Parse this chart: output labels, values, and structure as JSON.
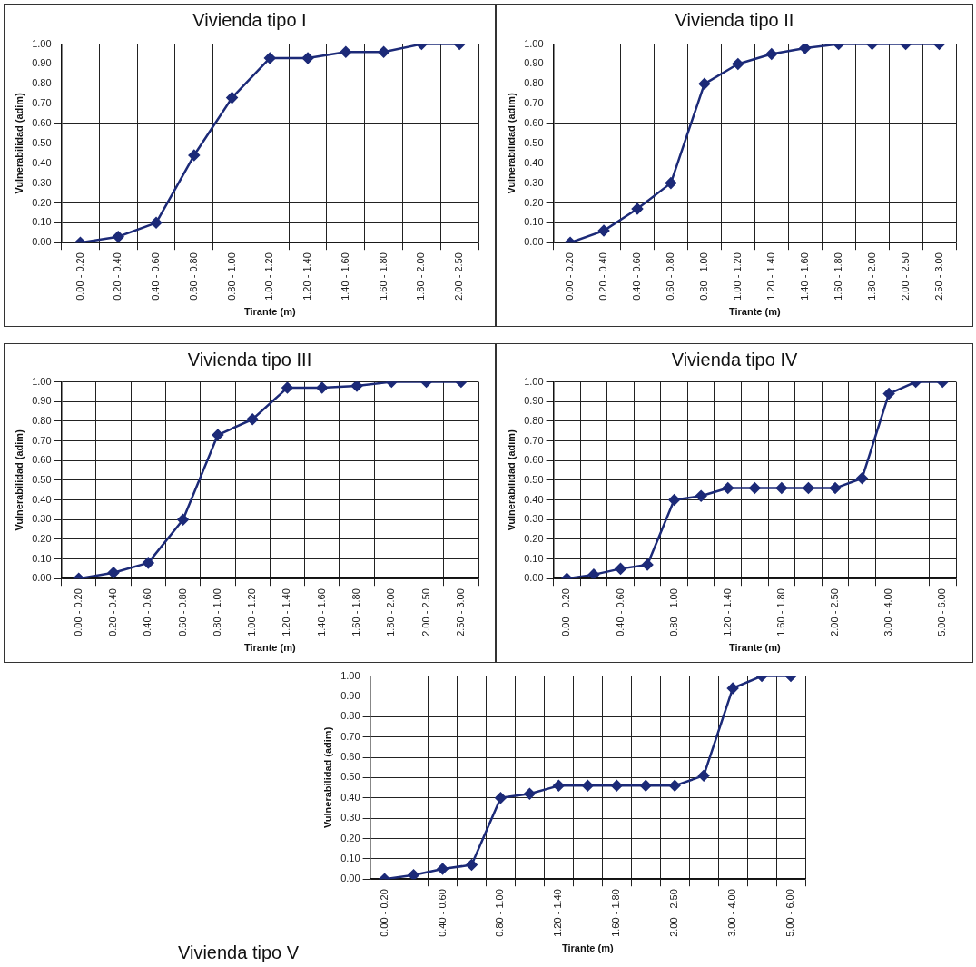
{
  "chart_data": [
    {
      "type": "line",
      "title": "Vivienda tipo I",
      "xlabel": "Tirante (m)",
      "ylabel": "Vulnerabilidad (adim)",
      "categories": [
        "0.00 - 0.20",
        "0.20 - 0.40",
        "0.40 - 0.60",
        "0.60 - 0.80",
        "0.80 - 1.00",
        "1.00 - 1.20",
        "1.20 - 1.40",
        "1.40 - 1.60",
        "1.60 - 1.80",
        "1.80 - 2.00",
        "2.00 - 2.50"
      ],
      "series": [
        {
          "color": "#1c2a78",
          "values": [
            0,
            0.03,
            0.1,
            0.44,
            0.73,
            0.93,
            0.93,
            0.96,
            0.96,
            1.0,
            1.0
          ]
        }
      ],
      "ylim": [
        0,
        1
      ],
      "yticks": [
        {
          "value": 0,
          "label": "0.00"
        },
        {
          "value": 0.1,
          "label": "0.10"
        },
        {
          "value": 0.2,
          "label": "0.20"
        },
        {
          "value": 0.3,
          "label": "0.30"
        },
        {
          "value": 0.4,
          "label": "0.40"
        },
        {
          "value": 0.5,
          "label": "0.50"
        },
        {
          "value": 0.6,
          "label": "0.60"
        },
        {
          "value": 0.7,
          "label": "0.70"
        },
        {
          "value": 0.8,
          "label": "0.80"
        },
        {
          "value": 0.9,
          "label": "0.90"
        },
        {
          "value": 1,
          "label": "1.00"
        }
      ],
      "grid": true,
      "legend": false,
      "marker": "diamond",
      "line_style": "solid"
    },
    {
      "type": "line",
      "title": "Vivienda tipo II",
      "xlabel": "Tirante (m)",
      "ylabel": "Vulnerabilidad (adim)",
      "categories": [
        "0.00 - 0.20",
        "0.20 - 0.40",
        "0.40 - 0.60",
        "0.60 - 0.80",
        "0.80 - 1.00",
        "1.00 - 1.20",
        "1.20 - 1.40",
        "1.40 - 1.60",
        "1.60 - 1.80",
        "1.80 - 2.00",
        "2.00 - 2.50",
        "2.50 - 3.00"
      ],
      "series": [
        {
          "color": "#1c2a78",
          "values": [
            0,
            0.06,
            0.17,
            0.3,
            0.8,
            0.9,
            0.95,
            0.98,
            1.0,
            1.0,
            1.0,
            1.0
          ]
        }
      ],
      "ylim": [
        0,
        1
      ],
      "yticks": [
        {
          "value": 0,
          "label": "0.00"
        },
        {
          "value": 0.1,
          "label": "0.10"
        },
        {
          "value": 0.2,
          "label": "0.20"
        },
        {
          "value": 0.3,
          "label": "0.30"
        },
        {
          "value": 0.4,
          "label": "0.40"
        },
        {
          "value": 0.5,
          "label": "0.50"
        },
        {
          "value": 0.6,
          "label": "0.60"
        },
        {
          "value": 0.7,
          "label": "0.70"
        },
        {
          "value": 0.8,
          "label": "0.80"
        },
        {
          "value": 0.9,
          "label": "0.90"
        },
        {
          "value": 1,
          "label": "1.00"
        }
      ],
      "grid": true,
      "legend": false,
      "marker": "diamond",
      "line_style": "solid"
    },
    {
      "type": "line",
      "title": "Vivienda tipo III",
      "xlabel": "Tirante (m)",
      "ylabel": "Vulnerabilidad (adim)",
      "categories": [
        "0.00 - 0.20",
        "0.20 - 0.40",
        "0.40 - 0.60",
        "0.60 - 0.80",
        "0.80 - 1.00",
        "1.00 - 1.20",
        "1.20 - 1.40",
        "1.40 - 1.60",
        "1.60 - 1.80",
        "1.80 - 2.00",
        "2.00 - 2.50",
        "2.50 - 3.00"
      ],
      "series": [
        {
          "color": "#1c2a78",
          "values": [
            0,
            0.03,
            0.08,
            0.3,
            0.73,
            0.81,
            0.97,
            0.97,
            0.98,
            1.0,
            1.0,
            1.0
          ]
        }
      ],
      "ylim": [
        0,
        1
      ],
      "yticks": [
        {
          "value": 0,
          "label": "0.00"
        },
        {
          "value": 0.1,
          "label": "0.10"
        },
        {
          "value": 0.2,
          "label": "0.20"
        },
        {
          "value": 0.3,
          "label": "0.30"
        },
        {
          "value": 0.4,
          "label": "0.40"
        },
        {
          "value": 0.5,
          "label": "0.50"
        },
        {
          "value": 0.6,
          "label": "0.60"
        },
        {
          "value": 0.7,
          "label": "0.70"
        },
        {
          "value": 0.8,
          "label": "0.80"
        },
        {
          "value": 0.9,
          "label": "0.90"
        },
        {
          "value": 1,
          "label": "1.00"
        }
      ],
      "grid": true,
      "legend": false,
      "marker": "diamond",
      "line_style": "solid"
    },
    {
      "type": "line",
      "title": "Vivienda tipo IV",
      "xlabel": "Tirante (m)",
      "ylabel": "Vulnerabilidad (adim)",
      "categories": [
        "0.00 - 0.20",
        null,
        "0.40 - 0.60",
        null,
        "0.80 - 1.00",
        null,
        "1.20 - 1.40",
        null,
        "1.60 - 1.80",
        null,
        "2.00 - 2.50",
        null,
        "3.00 - 4.00",
        null,
        "5.00 - 6.00"
      ],
      "series": [
        {
          "color": "#1c2a78",
          "values": [
            0,
            0.02,
            0.05,
            0.07,
            0.4,
            0.42,
            0.46,
            0.46,
            0.46,
            0.46,
            0.46,
            0.51,
            0.94,
            1.0,
            1.0
          ]
        }
      ],
      "ylim": [
        0,
        1
      ],
      "yticks": [
        {
          "value": 0,
          "label": "0.00"
        },
        {
          "value": 0.1,
          "label": "0.10"
        },
        {
          "value": 0.2,
          "label": "0.20"
        },
        {
          "value": 0.3,
          "label": "0.30"
        },
        {
          "value": 0.4,
          "label": "0.40"
        },
        {
          "value": 0.5,
          "label": "0.50"
        },
        {
          "value": 0.6,
          "label": "0.60"
        },
        {
          "value": 0.7,
          "label": "0.70"
        },
        {
          "value": 0.8,
          "label": "0.80"
        },
        {
          "value": 0.9,
          "label": "0.90"
        },
        {
          "value": 1,
          "label": "1.00"
        }
      ],
      "grid": true,
      "legend": false,
      "marker": "diamond",
      "line_style": "solid"
    },
    {
      "type": "line",
      "title": "Vivienda tipo V",
      "xlabel": "Tirante (m)",
      "ylabel": "Vulnerabilidad (adim)",
      "categories": [
        "0.00 - 0.20",
        null,
        "0.40 - 0.60",
        null,
        "0.80 - 1.00",
        null,
        "1.20 - 1.40",
        null,
        "1.60 - 1.80",
        null,
        "2.00 - 2.50",
        null,
        "3.00 - 4.00",
        null,
        "5.00 - 6.00"
      ],
      "series": [
        {
          "color": "#1c2a78",
          "values": [
            0,
            0.02,
            0.05,
            0.07,
            0.4,
            0.42,
            0.46,
            0.46,
            0.46,
            0.46,
            0.46,
            0.51,
            0.94,
            1.0,
            1.0
          ]
        }
      ],
      "ylim": [
        0,
        1
      ],
      "yticks": [
        {
          "value": 0,
          "label": "0.00"
        },
        {
          "value": 0.1,
          "label": "0.10"
        },
        {
          "value": 0.2,
          "label": "0.20"
        },
        {
          "value": 0.3,
          "label": "0.30"
        },
        {
          "value": 0.4,
          "label": "0.40"
        },
        {
          "value": 0.5,
          "label": "0.50"
        },
        {
          "value": 0.6,
          "label": "0.60"
        },
        {
          "value": 0.7,
          "label": "0.70"
        },
        {
          "value": 0.8,
          "label": "0.80"
        },
        {
          "value": 0.9,
          "label": "0.90"
        },
        {
          "value": 1,
          "label": "1.00"
        }
      ],
      "grid": true,
      "legend": false,
      "marker": "diamond",
      "line_style": "solid"
    }
  ]
}
